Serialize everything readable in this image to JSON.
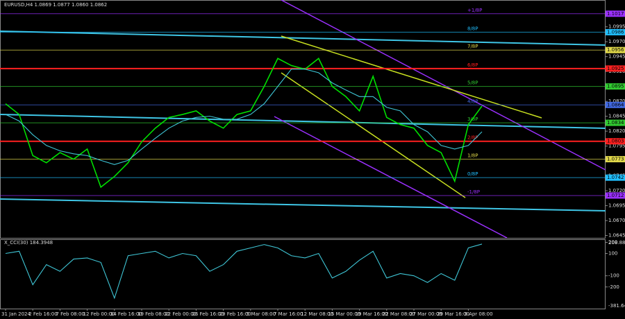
{
  "chart_data": [
    {
      "type": "line",
      "title": "EURUSD,H4  1.0869 1.0877 1.0860 1.0862",
      "categories": [
        "31 Jan 2024",
        null,
        "2 Feb 16:00",
        null,
        "7 Feb 08:00",
        null,
        "12 Feb 00:00",
        null,
        "14 Feb 16:00",
        null,
        "19 Feb 08:00",
        null,
        "22 Feb 00:00",
        null,
        "26 Feb 16:00",
        null,
        "29 Feb 16:00",
        null,
        "5 Mar 08:00",
        null,
        "7 Mar 16:00",
        null,
        "12 Mar 08:00",
        null,
        "15 Mar 00:00",
        null,
        "19 Mar 16:00",
        null,
        "22 Mar 08:00",
        null,
        "27 Mar 00:00",
        null,
        "29 Mar 16:00",
        null,
        "3 Apr 08:00",
        null
      ],
      "series": [
        {
          "color": "#00e000",
          "values": [
            1.0866,
            1.0848,
            1.0779,
            1.0767,
            1.0784,
            1.0773,
            1.079,
            1.0726,
            1.0744,
            1.0767,
            1.0802,
            1.0825,
            1.0843,
            1.0848,
            1.0854,
            1.0837,
            1.0825,
            1.0848,
            1.0854,
            1.0895,
            1.0942,
            1.093,
            1.0924,
            1.0942,
            1.0895,
            1.0878,
            1.0854,
            1.0912,
            1.0843,
            1.0831,
            1.0825,
            1.0796,
            1.0784,
            1.0736,
            1.0831,
            1.0862
          ]
        },
        {
          "color": "#3fc6d6",
          "values": [
            1.0848,
            1.0837,
            1.0814,
            1.0796,
            1.0787,
            1.0782,
            1.0779,
            1.0771,
            1.0764,
            1.0771,
            1.079,
            1.0808,
            1.0825,
            1.0837,
            1.0843,
            1.0845,
            1.084,
            1.084,
            1.0848,
            1.0866,
            1.0895,
            1.0924,
            1.0924,
            1.0918,
            1.0901,
            1.0889,
            1.0878,
            1.0878,
            1.086,
            1.0854,
            1.0831,
            1.0819,
            1.0796,
            1.079,
            1.0796,
            1.0819
          ]
        }
      ],
      "ylim": [
        1.0641,
        1.104
      ],
      "yticks": [
        1.0645,
        {
          "value": 1.067,
          "label": "1.0670"
        },
        1.0695,
        {
          "value": 1.072,
          "label": "1.0720"
        },
        1.0745,
        {
          "value": 1.077,
          "label": "1.0770"
        },
        1.0795,
        {
          "value": 1.082,
          "label": "1.0820"
        },
        1.0845,
        {
          "value": 1.087,
          "label": "1.0870"
        },
        1.0895,
        {
          "value": 1.092,
          "label": "1.0920"
        },
        1.0945,
        {
          "value": 1.097,
          "label": "1.0970"
        },
        1.0995
      ],
      "levels": [
        {
          "name": "+1/8P",
          "value": 1.1017,
          "color": "#9b30ff"
        },
        {
          "name": "8/8P",
          "value": 1.0986,
          "color": "#20bfff"
        },
        {
          "name": "7/8P",
          "value": 1.0956,
          "color": "#e0d84a"
        },
        {
          "name": "6/8P",
          "value": 1.0925,
          "color": "#ff2020"
        },
        {
          "name": "5/8P",
          "value": 1.0895,
          "color": "#32cd32"
        },
        {
          "name": "4/8P",
          "value": 1.0864,
          "color": "#4169e1"
        },
        {
          "name": "3/8P",
          "value": 1.0834,
          "color": "#32cd32"
        },
        {
          "name": "2/8P",
          "value": 1.0803,
          "color": "#ff2020"
        },
        {
          "name": "1/8P",
          "value": 1.0773,
          "color": "#e0d84a"
        },
        {
          "name": "0/8P",
          "value": 1.0742,
          "color": "#20bfff"
        },
        {
          "name": "-1/8P",
          "value": 1.0712,
          "color": "#9b30ff"
        }
      ]
    },
    {
      "type": "line",
      "title": "X_CCI(30) 184.3948",
      "ylim": [
        -381.647,
        208.887
      ],
      "yticks": [
        200,
        100,
        -100,
        -200
      ],
      "series": [
        {
          "color": "#3fc6d6",
          "values": [
            100,
            120,
            -180,
            0,
            -60,
            50,
            60,
            20,
            -300,
            80,
            100,
            120,
            60,
            100,
            80,
            -60,
            0,
            120,
            150,
            180,
            150,
            80,
            60,
            100,
            -120,
            -60,
            40,
            120,
            -120,
            -80,
            -100,
            -160,
            -80,
            -140,
            150,
            184.3948
          ]
        }
      ]
    }
  ]
}
